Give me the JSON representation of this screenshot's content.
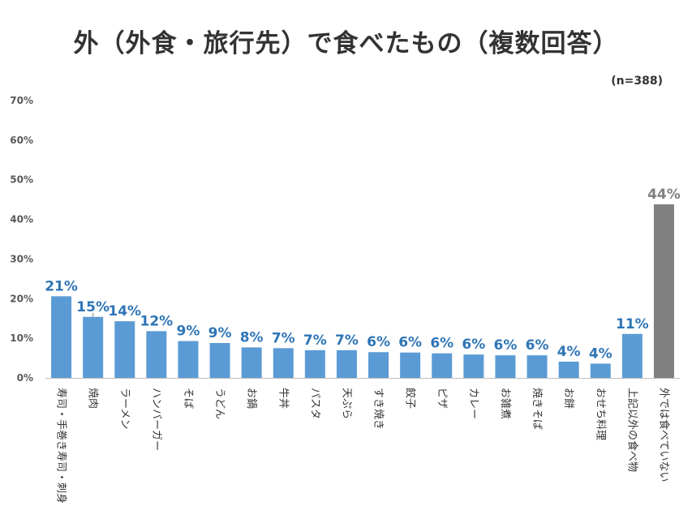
{
  "chart_data": {
    "type": "bar",
    "title": "外（外食・旅行先）で食べたもの（複数回答）",
    "note": "(n=388)",
    "xlabel": "",
    "ylabel": "",
    "ylim": [
      0,
      70
    ],
    "yticks": [
      "0%",
      "10%",
      "20%",
      "30%",
      "40%",
      "50%",
      "60%",
      "70%"
    ],
    "categories": [
      "寿司・手巻き寿司・刺身",
      "焼肉",
      "ラーメン",
      "ハンバーガー",
      "そば",
      "うどん",
      "お鍋",
      "牛丼",
      "パスタ",
      "天ぷら",
      "すき焼き",
      "餃子",
      "ピザ",
      "カレー",
      "お雑煮",
      "焼きそば",
      "お餅",
      "おせち料理",
      "上記以外の食べ物",
      "外では食べていない"
    ],
    "values": [
      20.6,
      15.4,
      14.3,
      11.8,
      9.3,
      8.8,
      7.7,
      7.5,
      7.0,
      7.0,
      6.5,
      6.4,
      6.2,
      5.9,
      5.7,
      5.7,
      4.1,
      3.6,
      11.1,
      43.8
    ],
    "labels": [
      "21%",
      "15%",
      "14%",
      "12%",
      "9%",
      "9%",
      "8%",
      "7%",
      "7%",
      "7%",
      "6%",
      "6%",
      "6%",
      "6%",
      "6%",
      "6%",
      "4%",
      "4%",
      "11%",
      "44%"
    ],
    "colors": {
      "bar": "#5b9bd5",
      "highlight": "#808080",
      "label": "#2e75b6",
      "highlight_label": "#808080",
      "axis": "#bfbfbf"
    }
  }
}
